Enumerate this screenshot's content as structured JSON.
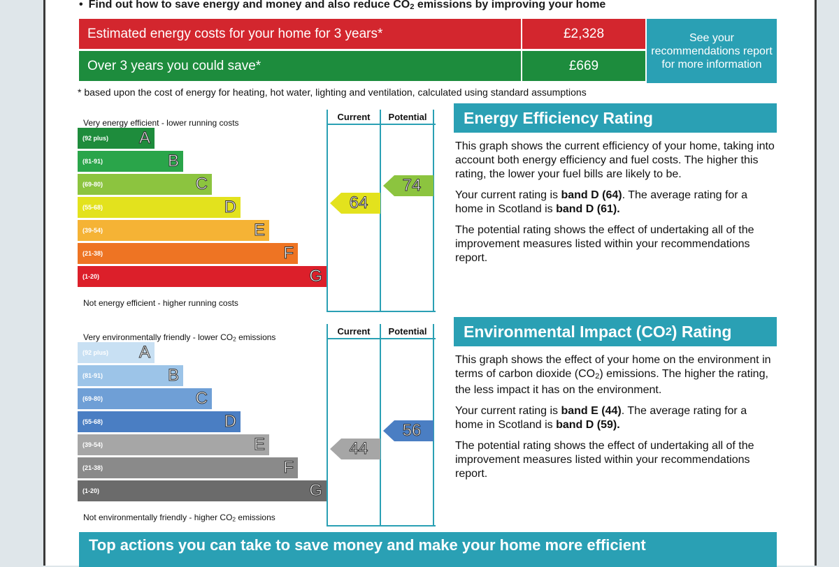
{
  "intro": {
    "bullet": "•",
    "text_before": "Find out how to save energy and money and also reduce CO",
    "sub": "2",
    "text_after": " emissions by improving your home"
  },
  "costs": {
    "estimated_label": "Estimated energy costs for your home for 3 years*",
    "estimated_value": "£2,328",
    "save_label": "Over 3 years you could save*",
    "save_value": "£669",
    "see_recommendations": "See your recommendations report for more information",
    "footnote": "* based upon the cost of energy for heating, hot water, lighting and ventilation, calculated using standard assumptions"
  },
  "energy_chart": {
    "col_current": "Current",
    "col_potential": "Potential",
    "top_text": "Very energy efficient - lower running costs",
    "bottom_text": "Not energy efficient - higher running costs",
    "bands": [
      {
        "range": "(92 plus)",
        "letter": "A",
        "color": "#1e8c3c"
      },
      {
        "range": "(81-91)",
        "letter": "B",
        "color": "#2aa54a"
      },
      {
        "range": "(69-80)",
        "letter": "C",
        "color": "#8cc43f"
      },
      {
        "range": "(55-68)",
        "letter": "D",
        "color": "#e3e21d"
      },
      {
        "range": "(39-54)",
        "letter": "E",
        "color": "#f5b335"
      },
      {
        "range": "(21-38)",
        "letter": "F",
        "color": "#ee7423"
      },
      {
        "range": "(1-20)",
        "letter": "G",
        "color": "#dc1f2a"
      }
    ],
    "current": {
      "value": "64",
      "color": "#e3e21d"
    },
    "potential": {
      "value": "74",
      "color": "#8cc43f"
    }
  },
  "env_chart": {
    "col_current": "Current",
    "col_potential": "Potential",
    "top_text_before": "Very environmentally friendly - lower CO",
    "top_text_sub": "2",
    "top_text_after": " emissions",
    "bottom_text_before": "Not environmentally friendly - higher CO",
    "bottom_text_sub": "2",
    "bottom_text_after": " emissions",
    "bands": [
      {
        "range": "(92 plus)",
        "letter": "A",
        "color": "#c8e0f3"
      },
      {
        "range": "(81-91)",
        "letter": "B",
        "color": "#9cc4e8"
      },
      {
        "range": "(69-80)",
        "letter": "C",
        "color": "#6f9fd6"
      },
      {
        "range": "(55-68)",
        "letter": "D",
        "color": "#4a7ec3"
      },
      {
        "range": "(39-54)",
        "letter": "E",
        "color": "#a6a6a6"
      },
      {
        "range": "(21-38)",
        "letter": "F",
        "color": "#8a8a8a"
      },
      {
        "range": "(1-20)",
        "letter": "G",
        "color": "#6b6b6b"
      }
    ],
    "current": {
      "value": "44",
      "color": "#a6a6a6"
    },
    "potential": {
      "value": "56",
      "color": "#4a7ec3"
    }
  },
  "energy_panel": {
    "title": "Energy Efficiency Rating",
    "p1": "This graph shows the current efficiency of your home, taking into account both energy efficiency and fuel costs. The higher this rating, the lower your fuel bills are likely to be.",
    "p2_a": "Your current rating is ",
    "p2_b": "band D (64)",
    "p2_c": ". The average rating for a home in Scotland is ",
    "p2_d": "band D (61).",
    "p3": "The potential rating shows the effect of undertaking all of the improvement measures listed within your recommendations report."
  },
  "env_panel": {
    "title_before": "Environmental Impact (CO",
    "title_sub": "2",
    "title_after": ") Rating",
    "p1_before": "This graph shows the effect of your home on the environment in terms of carbon dioxide (CO",
    "p1_sub": "2",
    "p1_after": ") emissions. The higher the rating, the less impact it has on the environment.",
    "p2_a": "Your current rating is ",
    "p2_b": "band E (44)",
    "p2_c": ". The average rating for a home in Scotland is ",
    "p2_d": "band D (59).",
    "p3": "The potential rating shows the effect of undertaking all of the improvement measures listed within your recommendations report."
  },
  "bottom_bar": "Top actions you can take to save money and make your home more efficient"
}
